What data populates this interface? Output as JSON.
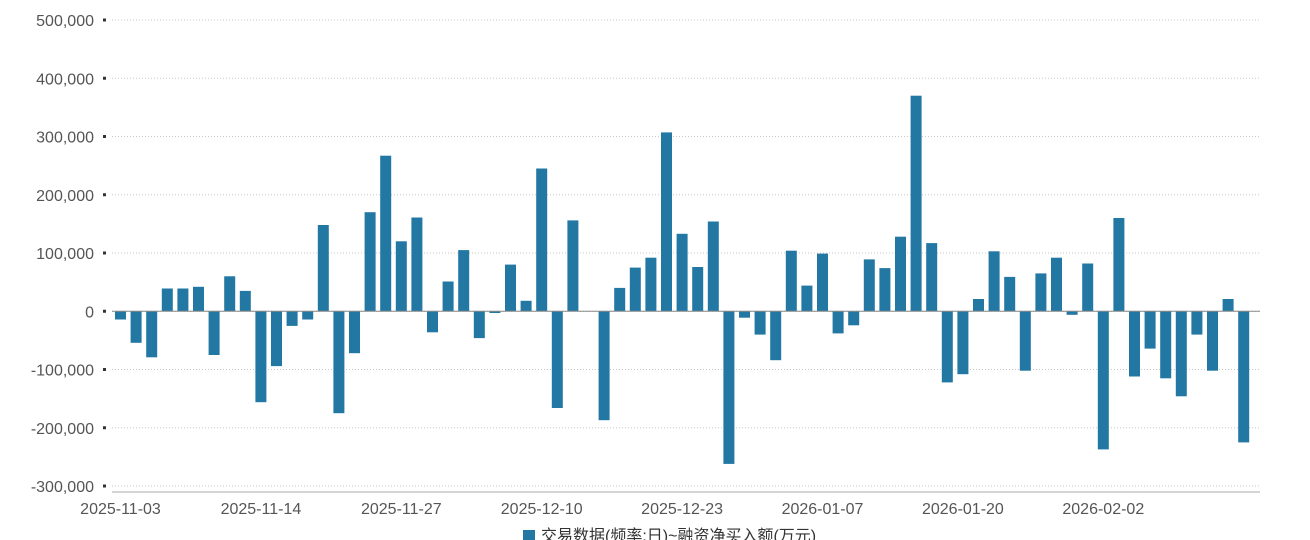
{
  "chart_data": {
    "type": "bar",
    "legend": {
      "label": "交易数据(频率:日)~融资净买入额(万元)",
      "position": "bottom-center"
    },
    "series": [
      {
        "name": "交易数据(频率:日)~融资净买入额(万元)",
        "color": "#2278a3",
        "values": [
          -14000,
          -54000,
          -79000,
          39000,
          39000,
          42000,
          -75000,
          60000,
          35000,
          -156000,
          -94000,
          -25000,
          -14000,
          148000,
          -175000,
          -72000,
          170000,
          267000,
          120000,
          161000,
          -36000,
          51000,
          105000,
          -46000,
          -3000,
          80000,
          18000,
          245000,
          -166000,
          156000,
          0,
          -187000,
          40000,
          75000,
          92000,
          307000,
          133000,
          76000,
          154000,
          -262000,
          -11000,
          -40000,
          -84000,
          104000,
          44000,
          99000,
          -38000,
          -24000,
          89000,
          74000,
          128000,
          370000,
          117000,
          -122000,
          -108000,
          21000,
          103000,
          59000,
          -102000,
          65000,
          92000,
          -6000,
          82000,
          -237000,
          160000,
          -112000,
          -64000,
          -115000,
          -146000,
          -40000,
          -102000,
          21000,
          -225000
        ]
      }
    ],
    "x_tick_labels": [
      "2025-11-03",
      "2025-11-14",
      "2025-11-27",
      "2025-12-10",
      "2025-12-23",
      "2026-01-07",
      "2026-01-20",
      "2026-02-02"
    ],
    "y_tick_labels": [
      "500,000",
      "400,000",
      "300,000",
      "200,000",
      "100,000",
      "0",
      "-100,000",
      "-200,000",
      "-300,000"
    ],
    "ylim": [
      -300000,
      500000
    ],
    "grid": "horizontal-dotted"
  }
}
